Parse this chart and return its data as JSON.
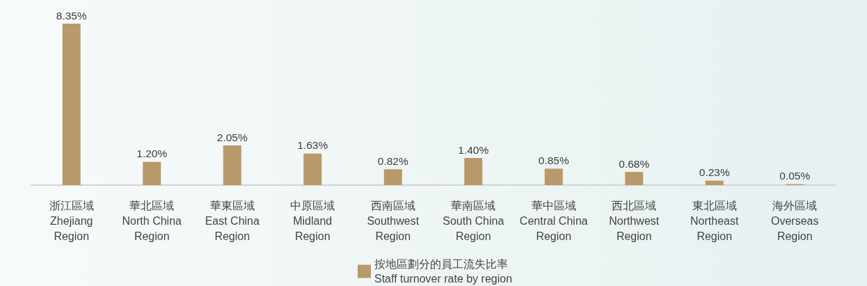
{
  "chart_data": {
    "type": "bar",
    "categories": [
      "浙江區域\nZhejiang\nRegion",
      "華北區域\nNorth China\nRegion",
      "華東區域\nEast China\nRegion",
      "中原區域\nMidland\nRegion",
      "西南區域\nSouthwest\nRegion",
      "華南區域\nSouth China\nRegion",
      "華中區域\nCentral China\nRegion",
      "西北區域\nNorthwest\nRegion",
      "東北區域\nNortheast\nRegion",
      "海外區域\nOverseas\nRegion"
    ],
    "series": [
      {
        "name": "按地區劃分的員工流失比率\nStaff turnover rate by region",
        "color": "#b8996a",
        "values": [
          8.35,
          1.2,
          2.05,
          1.63,
          0.82,
          1.4,
          0.85,
          0.68,
          0.23,
          0.05
        ],
        "value_labels": [
          "8.35%",
          "1.20%",
          "2.05%",
          "1.63%",
          "0.82%",
          "1.40%",
          "0.85%",
          "0.68%",
          "0.23%",
          "0.05%"
        ]
      }
    ],
    "legend": "bottom",
    "tick_labels": "x"
  }
}
